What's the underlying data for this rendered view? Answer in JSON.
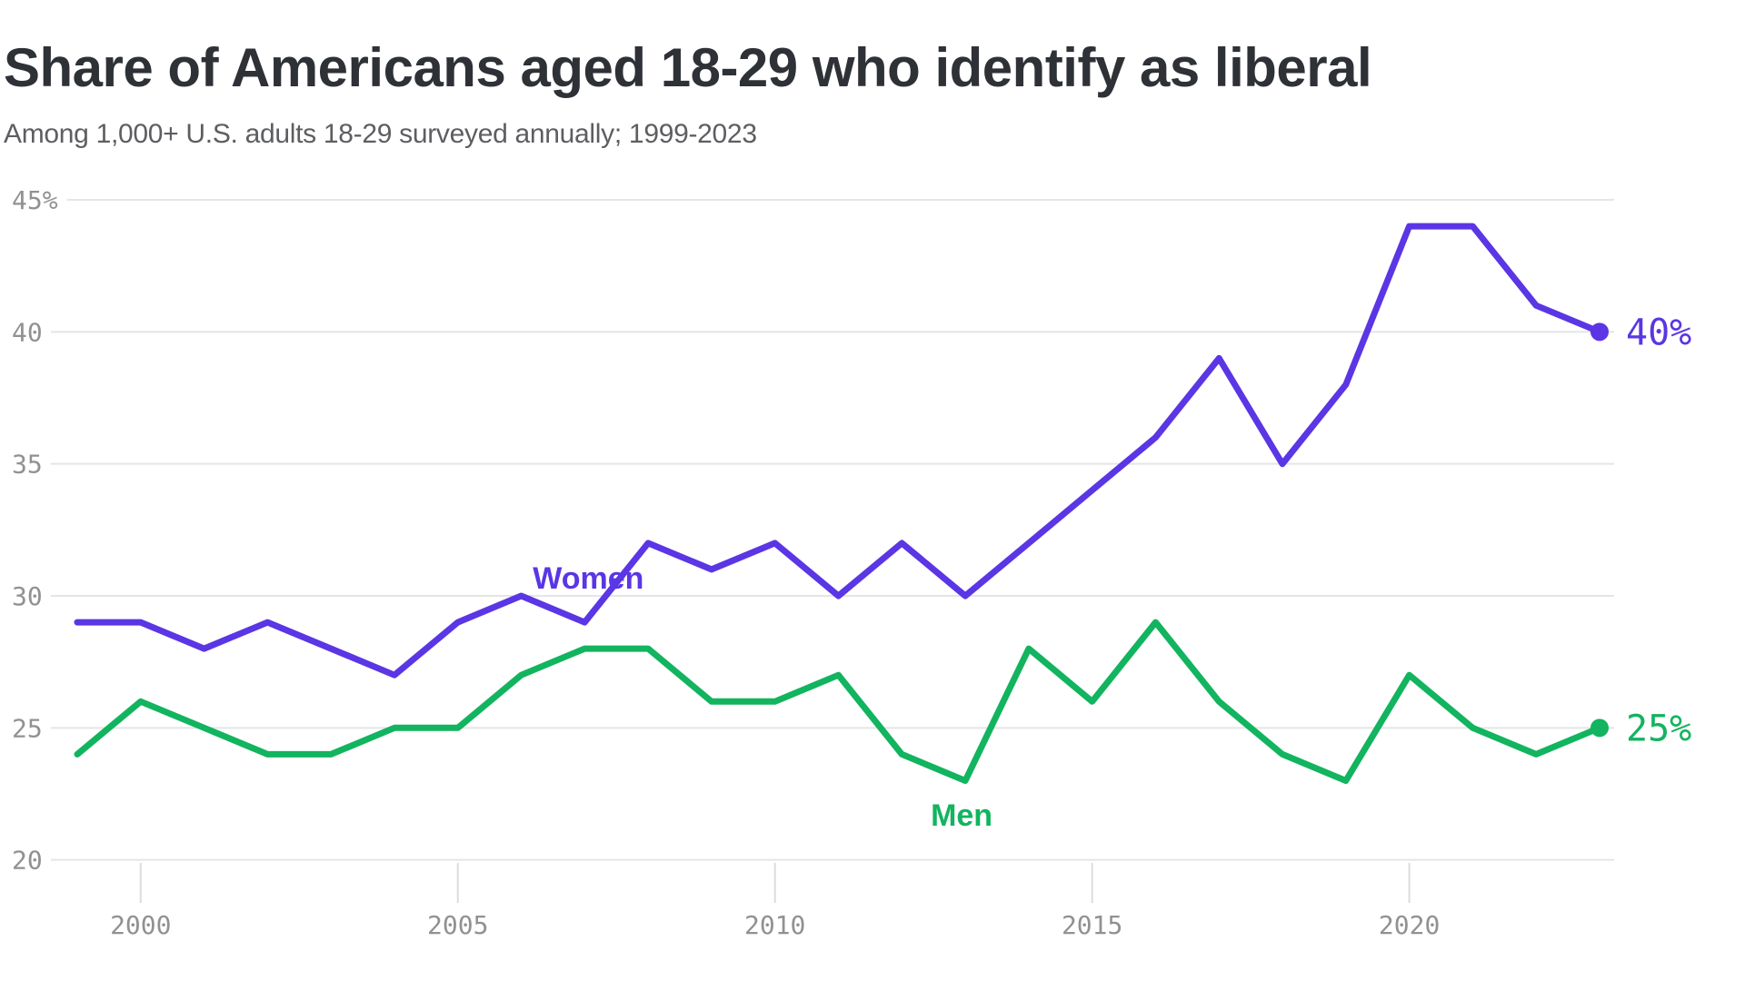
{
  "header": {
    "title": "Share of Americans aged 18-29 who identify as liberal",
    "subtitle": "Among 1,000+ U.S. adults 18-29 surveyed annually; 1999-2023"
  },
  "chart_data": {
    "type": "line",
    "title": "Share of Americans aged 18-29 who identify as liberal",
    "subtitle": "Among 1,000+ U.S. adults 18-29 surveyed annually; 1999-2023",
    "x": [
      1999,
      2000,
      2001,
      2002,
      2003,
      2004,
      2005,
      2006,
      2007,
      2008,
      2009,
      2010,
      2011,
      2012,
      2013,
      2014,
      2015,
      2016,
      2017,
      2018,
      2019,
      2020,
      2021,
      2022,
      2023
    ],
    "series": [
      {
        "name": "Women",
        "color": "#5a36e4",
        "values": [
          29,
          29,
          28,
          29,
          28,
          27,
          29,
          30,
          29,
          32,
          31,
          32,
          30,
          32,
          30,
          32,
          34,
          36,
          39,
          35,
          38,
          44,
          44,
          41,
          40
        ],
        "end_label": "40%"
      },
      {
        "name": "Men",
        "color": "#12b45f",
        "values": [
          24,
          26,
          25,
          24,
          24,
          25,
          25,
          27,
          28,
          28,
          26,
          26,
          27,
          24,
          23,
          28,
          26,
          29,
          26,
          24,
          23,
          27,
          25,
          24,
          25
        ],
        "end_label": "25%"
      }
    ],
    "ylabel": "",
    "xlabel": "",
    "ylim": [
      20,
      45
    ],
    "yticks": [
      {
        "value": 45,
        "label": "45%"
      },
      {
        "value": 40,
        "label": "40"
      },
      {
        "value": 35,
        "label": "35"
      },
      {
        "value": 30,
        "label": "30"
      },
      {
        "value": 25,
        "label": "25"
      },
      {
        "value": 20,
        "label": "20"
      }
    ],
    "xticks": [
      {
        "value": 2000,
        "label": "2000"
      },
      {
        "value": 2005,
        "label": "2005"
      },
      {
        "value": 2010,
        "label": "2010"
      },
      {
        "value": 2015,
        "label": "2015"
      },
      {
        "value": 2020,
        "label": "2020"
      }
    ],
    "grid": "horizontal",
    "legend_position": "inline-labels",
    "colors": {
      "background": "#ffffff",
      "gridline": "#e5e5e5",
      "tick_label": "#919191",
      "title": "#2e3136",
      "subtitle": "#5d5e61"
    }
  }
}
